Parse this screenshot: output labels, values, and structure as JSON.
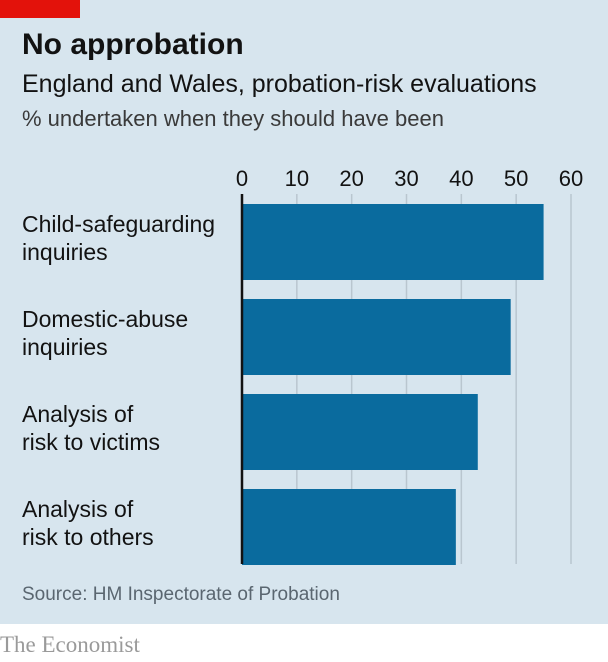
{
  "header": {
    "title": "No approbation",
    "subtitle": "England and Wales, probation-risk evaluations",
    "unit": "% undertaken when they should have been"
  },
  "footer": {
    "source": "Source: HM Inspectorate of Probation",
    "brand": "The Economist"
  },
  "colors": {
    "bar": "#0a6b9e",
    "accent": "#e3120b",
    "background": "#d7e5ee",
    "grid": "#b9c6cf"
  },
  "chart_data": {
    "type": "bar",
    "orientation": "horizontal",
    "categories": [
      [
        "Child-safeguarding",
        "inquiries"
      ],
      [
        "Domestic-abuse",
        "inquiries"
      ],
      [
        "Analysis of",
        "risk to victims"
      ],
      [
        "Analysis of",
        "risk to others"
      ]
    ],
    "values": [
      55,
      49,
      43,
      39
    ],
    "xticks": [
      0,
      10,
      20,
      30,
      40,
      50,
      60
    ],
    "xlim": [
      0,
      60
    ],
    "grid": true,
    "axis_position": "top"
  }
}
